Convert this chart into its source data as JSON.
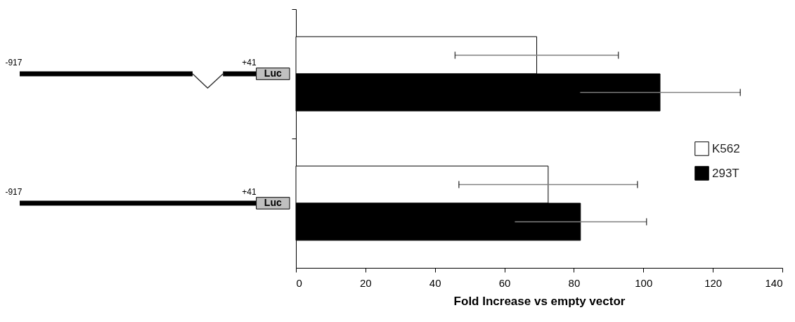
{
  "chart_data": {
    "type": "bar",
    "orientation": "horizontal",
    "categories": [
      null,
      null
    ],
    "xlabel": "Fold Increase vs empty vector",
    "series": [
      {
        "name": "K562",
        "color": "#ffffff",
        "values": [
          69.3,
          72.6
        ],
        "errors": [
          23.5,
          25.7
        ]
      },
      {
        "name": "293T",
        "color": "#000000",
        "values": [
          104.8,
          81.9
        ],
        "errors": [
          23.1,
          19
        ]
      }
    ],
    "xlim": [
      0,
      140
    ],
    "xticks": [
      0,
      20,
      40,
      60,
      80,
      100,
      120,
      140
    ],
    "grid": false,
    "legend": "right",
    "annotations": [
      "-917",
      "+41",
      "Luc",
      "-917",
      "+41",
      "Luc"
    ]
  }
}
